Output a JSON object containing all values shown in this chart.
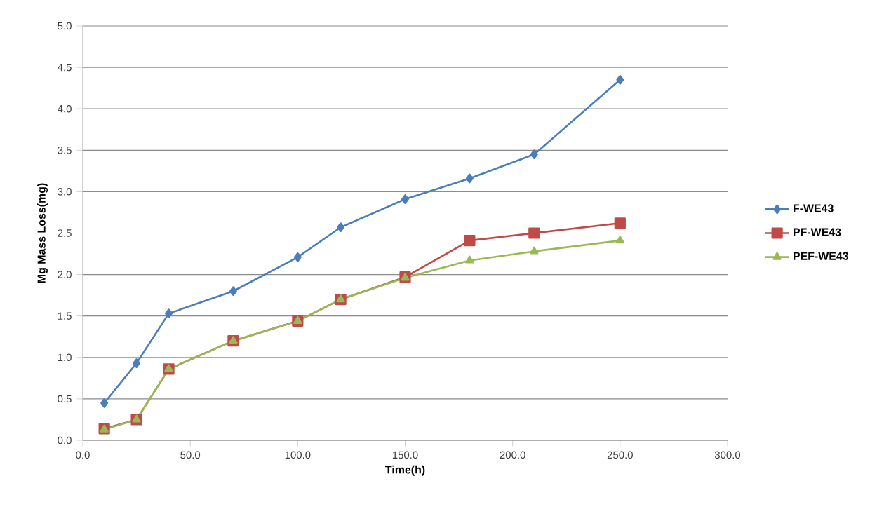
{
  "chart_data": {
    "type": "line",
    "xlabel": "Time(h)",
    "ylabel": "Mg Mass Loss(mg)",
    "x": [
      10,
      25,
      40,
      70,
      100,
      120,
      150,
      180,
      210,
      250
    ],
    "series": [
      {
        "name": "F-WE43",
        "color": "#4a7ebb",
        "marker": "diamond",
        "values": [
          0.45,
          0.93,
          1.53,
          1.8,
          2.21,
          2.57,
          2.91,
          3.16,
          3.45,
          4.35
        ]
      },
      {
        "name": "PF-WE43",
        "color": "#be4b48",
        "marker": "square",
        "values": [
          0.14,
          0.25,
          0.86,
          1.2,
          1.44,
          1.7,
          1.97,
          2.41,
          2.5,
          2.62
        ]
      },
      {
        "name": "PEF-WE43",
        "color": "#98b954",
        "marker": "triangle",
        "values": [
          0.13,
          0.25,
          0.86,
          1.2,
          1.44,
          1.7,
          1.96,
          2.17,
          2.28,
          2.41
        ]
      }
    ],
    "xlim": [
      0,
      300
    ],
    "xticks": [
      {
        "value": 0,
        "label": "0.0"
      },
      {
        "value": 50,
        "label": "50.0"
      },
      {
        "value": 100,
        "label": "100.0"
      },
      {
        "value": 150,
        "label": "150.0"
      },
      {
        "value": 200,
        "label": "200.0"
      },
      {
        "value": 250,
        "label": "250.0"
      },
      {
        "value": 300,
        "label": "300.0"
      }
    ],
    "ylim": [
      0,
      5
    ],
    "yticks": [
      {
        "value": 0,
        "label": "0.0"
      },
      {
        "value": 0.5,
        "label": "0.5"
      },
      {
        "value": 1,
        "label": "1.0"
      },
      {
        "value": 1.5,
        "label": "1.5"
      },
      {
        "value": 2,
        "label": "2.0"
      },
      {
        "value": 2.5,
        "label": "2.5"
      },
      {
        "value": 3,
        "label": "3.0"
      },
      {
        "value": 3.5,
        "label": "3.5"
      },
      {
        "value": 4,
        "label": "4.0"
      },
      {
        "value": 4.5,
        "label": "4.5"
      },
      {
        "value": 5,
        "label": "5.0"
      }
    ],
    "grid": "y",
    "legend": "right",
    "line_style": "solid"
  }
}
